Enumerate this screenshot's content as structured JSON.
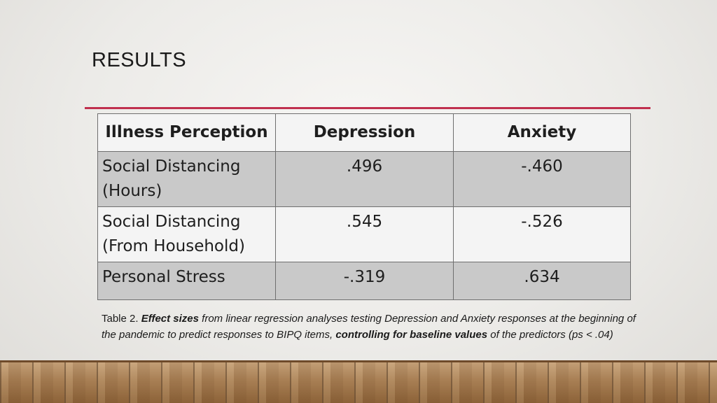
{
  "slide": {
    "title": "RESULTS"
  },
  "table": {
    "headers": [
      "Illness Perception",
      "Depression",
      "Anxiety"
    ],
    "rows": [
      {
        "label_line1": "Social Distancing",
        "label_line2": "(Hours)",
        "depression": ".496",
        "anxiety": "-.460"
      },
      {
        "label_line1": "Social Distancing",
        "label_line2": "(From Household)",
        "depression": ".545",
        "anxiety": "-.526"
      },
      {
        "label_line1": "Personal Stress",
        "label_line2": "",
        "depression": "-.319",
        "anxiety": ".634"
      }
    ]
  },
  "caption": {
    "prefix": "Table 2. ",
    "bold1": "Effect sizes",
    "text1": " from linear regression analyses testing Depression and Anxiety responses at the beginning of the pandemic to predict responses to BIPQ items, ",
    "bold2": "controlling for baseline values",
    "text2": " of the predictors (ps < .04)"
  },
  "colors": {
    "accent_rule": "#c0304e",
    "shaded_row": "#c9c9c9",
    "light_row": "#f4f4f4"
  }
}
